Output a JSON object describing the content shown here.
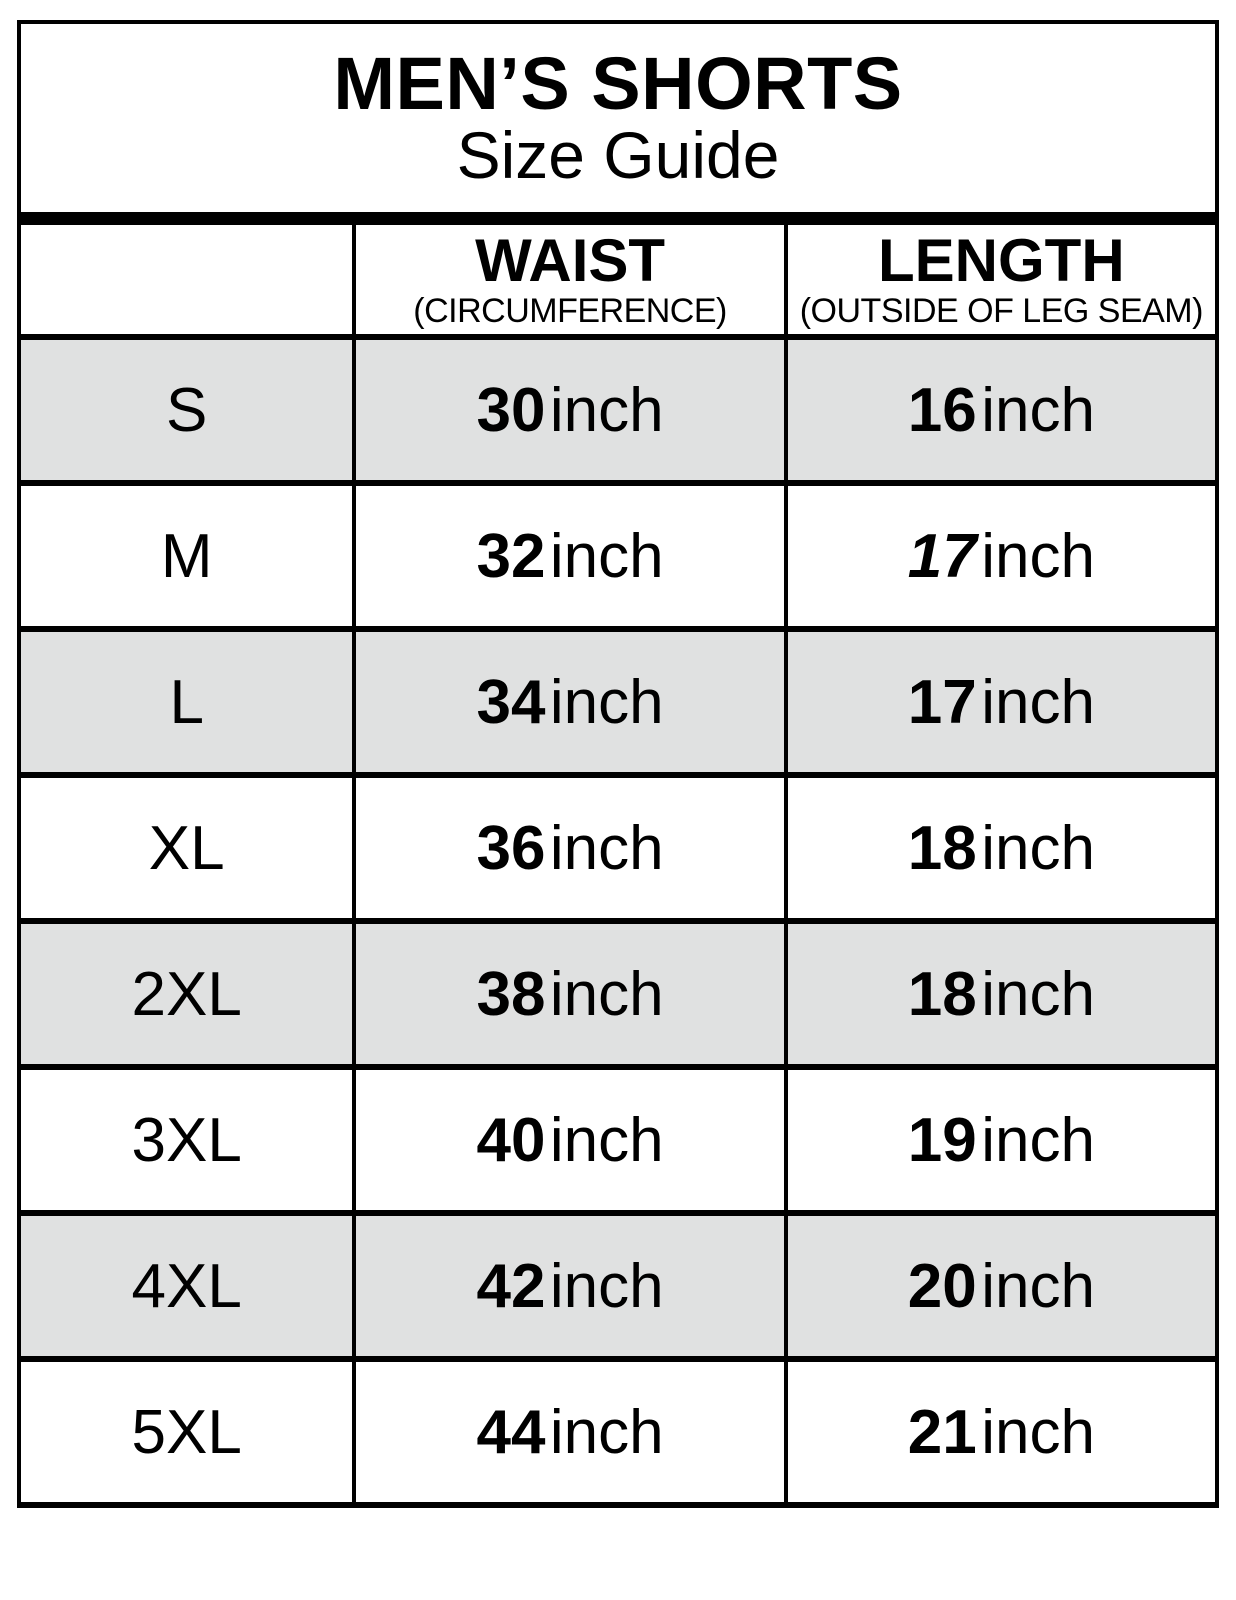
{
  "title": {
    "heading": "MEN’S SHORTS",
    "subheading": "Size Guide"
  },
  "table": {
    "header": {
      "size_label": "",
      "waist_label": "WAIST",
      "waist_sublabel": "(CIRCUMFERENCE)",
      "length_label": "LENGTH",
      "length_sublabel": "(OUTSIDE OF LEG SEAM)"
    },
    "unit": "inch",
    "rows": [
      {
        "size": "S",
        "waist": "30",
        "length": "16",
        "length_italic": false
      },
      {
        "size": "M",
        "waist": "32",
        "length": "17",
        "length_italic": true
      },
      {
        "size": "L",
        "waist": "34",
        "length": "17",
        "length_italic": false
      },
      {
        "size": "XL",
        "waist": "36",
        "length": "18",
        "length_italic": false
      },
      {
        "size": "2XL",
        "waist": "38",
        "length": "18",
        "length_italic": false
      },
      {
        "size": "3XL",
        "waist": "40",
        "length": "19",
        "length_italic": false
      },
      {
        "size": "4XL",
        "waist": "42",
        "length": "20",
        "length_italic": false
      },
      {
        "size": "5XL",
        "waist": "44",
        "length": "21",
        "length_italic": false
      }
    ]
  },
  "colors": {
    "border": "#000000",
    "row_shade": "#e0e1e1",
    "background": "#ffffff",
    "text": "#000000"
  }
}
